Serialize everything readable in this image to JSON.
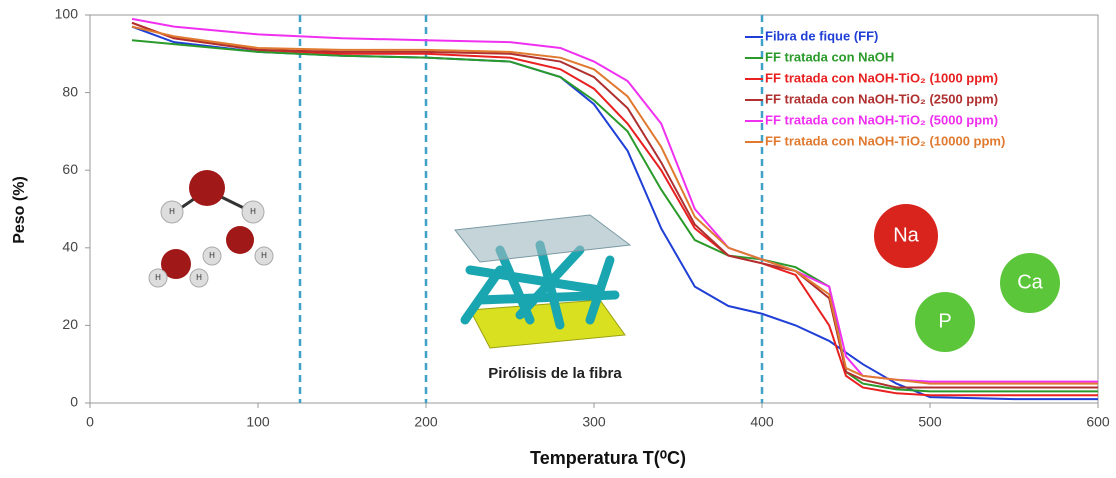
{
  "chart_data": {
    "type": "line",
    "x_label": "Temperatura T(⁰C)",
    "y_label": "Peso (%)",
    "xlim": [
      0,
      600
    ],
    "ylim": [
      0,
      100
    ],
    "xticks": [
      0,
      100,
      200,
      300,
      400,
      500,
      600
    ],
    "yticks": [
      0,
      20,
      40,
      60,
      80,
      100
    ],
    "grid": false,
    "legend": "upper right",
    "vlines": [
      125,
      200,
      400
    ],
    "vline_color": "#3fa0c8",
    "x": [
      25,
      50,
      100,
      150,
      200,
      250,
      280,
      300,
      320,
      340,
      360,
      380,
      400,
      420,
      440,
      450,
      460,
      480,
      500,
      550,
      600
    ],
    "series": [
      {
        "name": "Fibra de fique (FF)",
        "color": "#1f3fd6",
        "values": [
          97,
          93,
          90.5,
          89.5,
          89,
          88,
          84,
          77,
          65,
          45,
          30,
          25,
          23,
          20,
          16,
          13,
          10,
          5,
          1.5,
          1,
          1
        ]
      },
      {
        "name": "FF tratada con NaOH",
        "color": "#2a9a2a",
        "values": [
          93.5,
          92.5,
          90.5,
          89.5,
          89,
          88,
          84,
          78,
          70,
          55,
          42,
          38,
          37,
          35,
          30,
          8,
          5,
          3.5,
          3,
          3,
          3
        ]
      },
      {
        "name": "FF tratada con NaOH-TiO₂ (1000 ppm)",
        "color": "#e82020",
        "values": [
          98,
          94,
          91,
          90,
          90,
          89,
          86,
          81,
          72,
          60,
          45,
          38,
          36,
          33,
          20,
          7,
          4,
          2.5,
          2,
          2,
          2
        ]
      },
      {
        "name": "FF tratada con NaOH-TiO₂ (2500 ppm)",
        "color": "#b03030",
        "values": [
          98,
          94,
          91,
          90.5,
          90.5,
          90,
          88,
          84,
          76,
          62,
          46,
          38,
          36,
          34,
          27,
          8,
          6,
          4,
          4,
          4,
          4
        ]
      },
      {
        "name": "FF tratada con NaOH-TiO₂ (5000 ppm)",
        "color": "#f030f0",
        "values": [
          99,
          97,
          95,
          94,
          93.5,
          93,
          91.5,
          88,
          83,
          72,
          50,
          40,
          37,
          34,
          30,
          12,
          7,
          6,
          5.5,
          5.5,
          5.5
        ]
      },
      {
        "name": "FF tratada con NaOH-TiO₂ (10000 ppm)",
        "color": "#e07a30",
        "values": [
          97,
          94.5,
          91.5,
          91,
          91,
          90.5,
          89,
          86,
          79,
          66,
          48,
          40,
          37,
          34,
          28,
          9,
          7,
          6,
          5,
          5,
          5
        ]
      }
    ],
    "annotations": {
      "pyrolysis": "Pirólisis de la fibra",
      "hydrogen": "H",
      "ions": [
        "Na",
        "P",
        "Ca"
      ]
    }
  }
}
